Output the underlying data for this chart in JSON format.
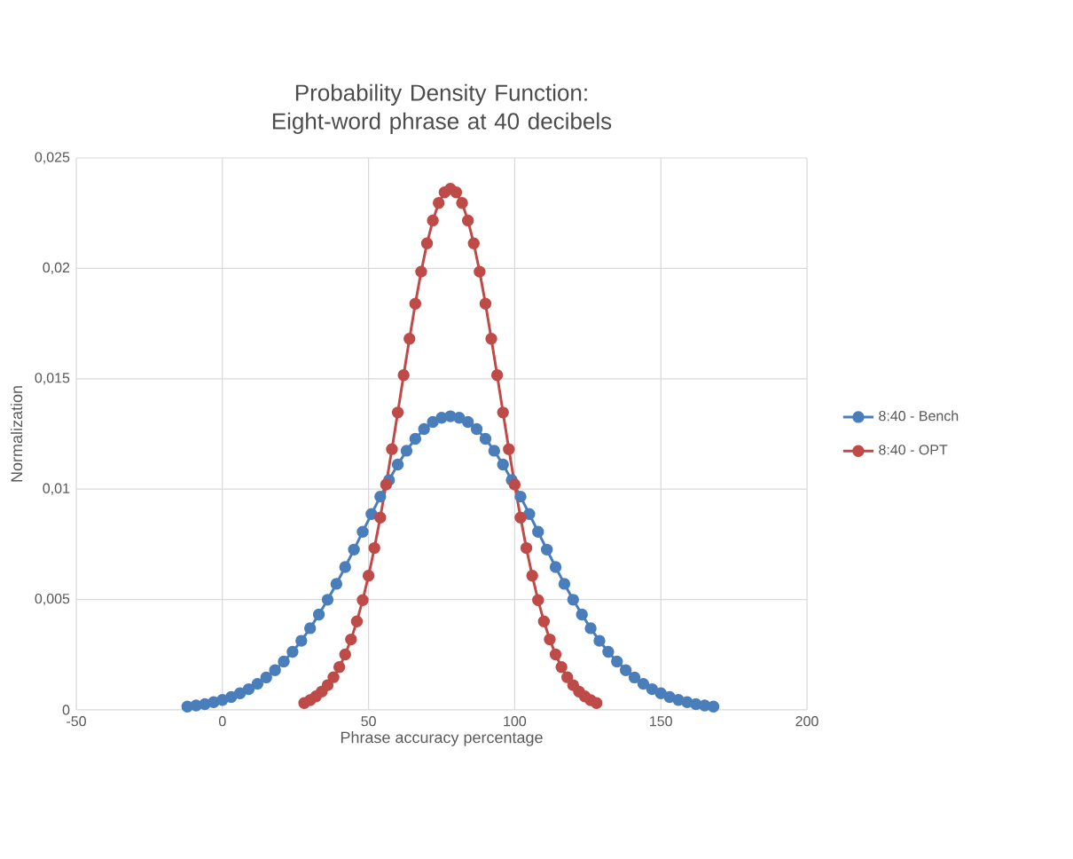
{
  "chart_data": {
    "type": "line",
    "title": "Probability Density Function: Eight-word phrase at 40 decibels",
    "xlabel": "Phrase accuracy percentage",
    "ylabel": "Normalization",
    "xlim": [
      -50,
      200
    ],
    "xticks": [
      -50,
      0,
      50,
      100,
      150,
      200
    ],
    "ylim": [
      0,
      0.025
    ],
    "yticks": [
      {
        "value": 0,
        "label": "0"
      },
      {
        "value": 0.005,
        "label": "0,005"
      },
      {
        "value": 0.01,
        "label": "0,01"
      },
      {
        "value": 0.015,
        "label": "0,015"
      },
      {
        "value": 0.02,
        "label": "0,02"
      },
      {
        "value": 0.025,
        "label": "0,025"
      }
    ],
    "grid": true,
    "legend": "right",
    "marker": "circle",
    "line_style": "solid",
    "series": [
      {
        "name": "8:40 - Bench",
        "color": "#4a7ebb",
        "x": [
          -12,
          -9,
          -6,
          -3,
          0,
          3,
          6,
          9,
          12,
          15,
          18,
          21,
          24,
          27,
          30,
          33,
          36,
          39,
          42,
          45,
          48,
          51,
          54,
          57,
          60,
          63,
          66,
          69,
          72,
          75,
          78,
          81,
          84,
          87,
          90,
          93,
          96,
          99,
          102,
          105,
          108,
          111,
          114,
          117,
          120,
          123,
          126,
          129,
          132,
          135,
          138,
          141,
          144,
          147,
          150,
          153,
          156,
          159,
          162,
          165,
          168
        ],
        "values": [
          0.00015,
          0.0002,
          0.00026,
          0.00035,
          0.00045,
          0.00058,
          0.00075,
          0.00094,
          0.00118,
          0.00147,
          0.0018,
          0.00219,
          0.00263,
          0.00313,
          0.0037,
          0.00432,
          0.00499,
          0.00571,
          0.00647,
          0.00726,
          0.00807,
          0.00887,
          0.00966,
          0.01041,
          0.01111,
          0.01174,
          0.01228,
          0.01272,
          0.01304,
          0.01323,
          0.0133,
          0.01323,
          0.01304,
          0.01272,
          0.01228,
          0.01174,
          0.01111,
          0.01041,
          0.00966,
          0.00887,
          0.00807,
          0.00726,
          0.00647,
          0.00571,
          0.00499,
          0.00432,
          0.0037,
          0.00313,
          0.00263,
          0.00219,
          0.0018,
          0.00147,
          0.00118,
          0.00094,
          0.00075,
          0.00058,
          0.00045,
          0.00035,
          0.00026,
          0.0002,
          0.00015
        ]
      },
      {
        "name": "8:40 - OPT",
        "color": "#be4b48",
        "x": [
          28,
          30,
          32,
          34,
          36,
          38,
          40,
          42,
          44,
          46,
          48,
          50,
          52,
          54,
          56,
          58,
          60,
          62,
          64,
          66,
          68,
          70,
          72,
          74,
          76,
          78,
          80,
          82,
          84,
          86,
          88,
          90,
          92,
          94,
          96,
          98,
          100,
          102,
          104,
          106,
          108,
          110,
          112,
          114,
          116,
          118,
          120,
          122,
          124,
          126,
          128
        ],
        "values": [
          0.00031,
          0.00044,
          0.00061,
          0.00083,
          0.00112,
          0.00148,
          0.00194,
          0.00251,
          0.00319,
          0.00401,
          0.00497,
          0.00608,
          0.00733,
          0.00871,
          0.01021,
          0.01181,
          0.01347,
          0.01516,
          0.01681,
          0.0184,
          0.01985,
          0.02113,
          0.02217,
          0.02296,
          0.02344,
          0.0236,
          0.02344,
          0.02296,
          0.02217,
          0.02113,
          0.01985,
          0.0184,
          0.01681,
          0.01516,
          0.01347,
          0.01181,
          0.01021,
          0.00871,
          0.00733,
          0.00608,
          0.00497,
          0.00401,
          0.00319,
          0.00251,
          0.00194,
          0.00148,
          0.00112,
          0.00083,
          0.00061,
          0.00044,
          0.00031
        ]
      }
    ]
  }
}
